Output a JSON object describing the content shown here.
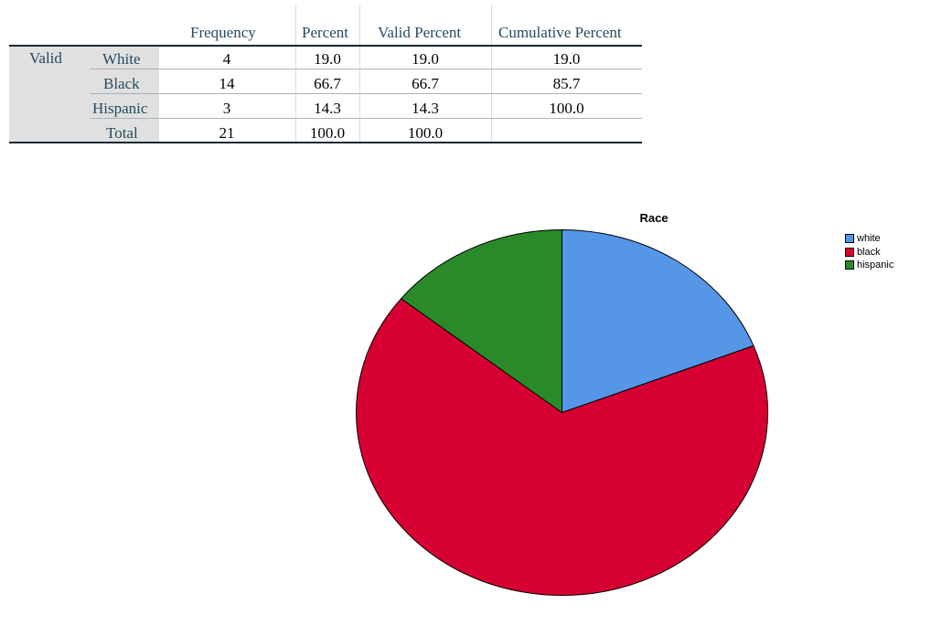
{
  "frequency_table": {
    "row_group_label": "Valid",
    "columns": [
      "Frequency",
      "Percent",
      "Valid Percent",
      "Cumulative Percent"
    ],
    "rows": [
      {
        "label": "White",
        "frequency": "4",
        "percent": "19.0",
        "valid_percent": "19.0",
        "cumulative_percent": "19.0"
      },
      {
        "label": "Black",
        "frequency": "14",
        "percent": "66.7",
        "valid_percent": "66.7",
        "cumulative_percent": "85.7"
      },
      {
        "label": "Hispanic",
        "frequency": "3",
        "percent": "14.3",
        "valid_percent": "14.3",
        "cumulative_percent": "100.0"
      },
      {
        "label": "Total",
        "frequency": "21",
        "percent": "100.0",
        "valid_percent": "100.0",
        "cumulative_percent": ""
      }
    ]
  },
  "chart_data": {
    "type": "pie",
    "title": "Race",
    "categories": [
      "white",
      "black",
      "hispanic"
    ],
    "values": [
      4,
      14,
      3
    ],
    "colors": [
      "#5596e6",
      "#d60032",
      "#2a8a2a"
    ],
    "legend_position": "top-right"
  }
}
